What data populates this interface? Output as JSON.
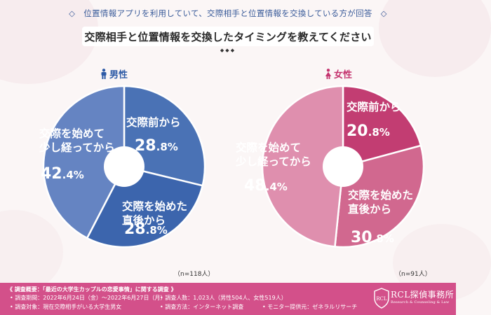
{
  "header": {
    "diamond": "◇",
    "title": "位置情報アプリを利用していて、交際相手と位置情報を交換している方が回答"
  },
  "subtitle": "交際相手と位置情報を交換したタイミングを教えてください",
  "diamonds": "◆◆◆",
  "colors": {
    "male_text": "#2d5aa6",
    "female_text": "#c4336e",
    "footer": "#d3508a"
  },
  "chart_data": [
    {
      "type": "pie",
      "title": "男性",
      "n_label": "（n=118人）",
      "slices": [
        {
          "label": "交際前から",
          "lines": [
            "交際前から"
          ],
          "value": 28.8,
          "color": "#4a72b5"
        },
        {
          "label": "交際を始めた直後から",
          "lines": [
            "交際を始めた",
            "直後から"
          ],
          "value": 28.8,
          "color": "#3c65ad"
        },
        {
          "label": "交際を始めて少し経ってから",
          "lines": [
            "交際を始めて",
            "少し経ってから"
          ],
          "value": 42.4,
          "color": "#6584c2"
        }
      ]
    },
    {
      "type": "pie",
      "title": "女性",
      "n_label": "（n=91人）",
      "slices": [
        {
          "label": "交際前から",
          "lines": [
            "交際前から"
          ],
          "value": 20.8,
          "color": "#c23d72"
        },
        {
          "label": "交際を始めた直後から",
          "lines": [
            "交際を始めた",
            "直後から"
          ],
          "value": 30.8,
          "color": "#d1688f"
        },
        {
          "label": "交際を始めて少し経ってから",
          "lines": [
            "交際を始めて",
            "少し経ってから"
          ],
          "value": 48.4,
          "color": "#df8fae"
        }
      ]
    }
  ],
  "footer": {
    "heading": "《 調査概要：「最近の大学生カップルの恋愛事情」に関する調査 》",
    "period": "• 調査期間：2022年6月24日（金）～2022年6月27日（月）",
    "count": "• 調査人数：1,023人（男性504人、女性519人）",
    "target": "• 調査対象：現在交際相手がいる大学生男女",
    "method": "• 調査方法：インターネット調査",
    "provider": "• モニター提供元：ゼネラルリサーチ",
    "logo_letters": "RCL",
    "logo_name": "RCL探偵事務所",
    "logo_tagline": "Research & Counseling & Law"
  }
}
